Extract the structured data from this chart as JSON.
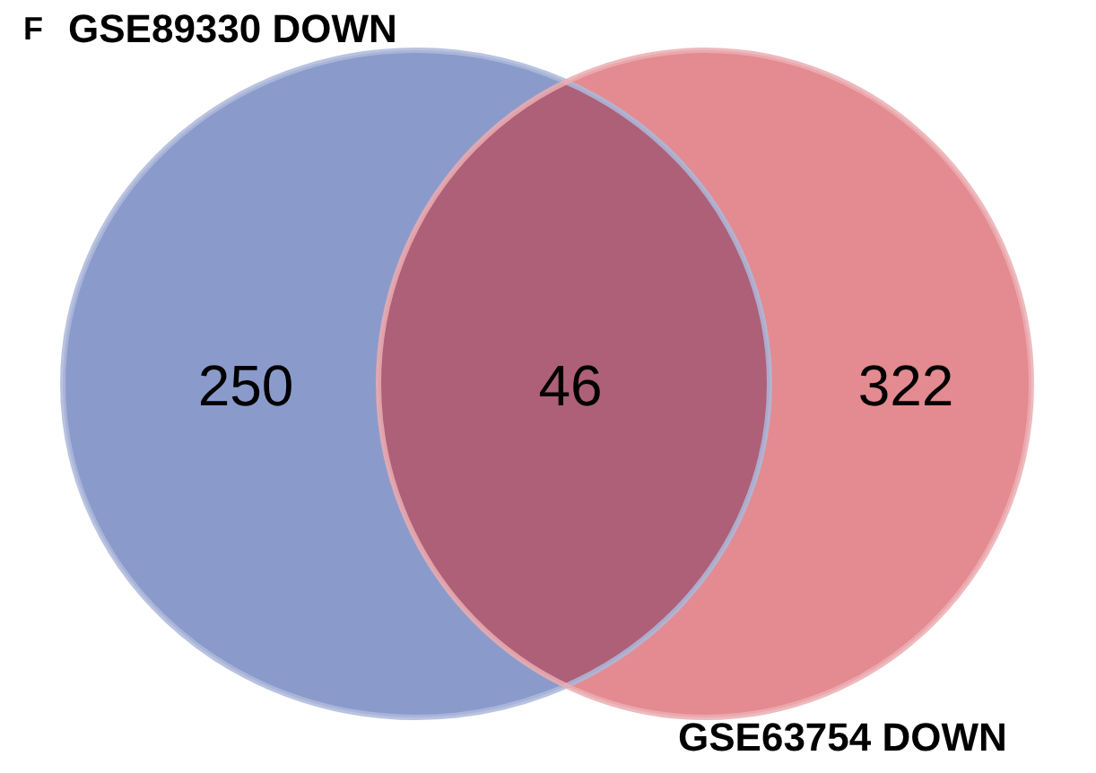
{
  "chart_data": {
    "type": "other",
    "title": "F",
    "categories": [
      "GSE89330 DOWN",
      null,
      "GSE63754 DOWN"
    ],
    "values": [
      250,
      46,
      322
    ],
    "data_labels": true,
    "colors": [
      "#8a9bcb",
      "#ad6078",
      "#e38b90"
    ]
  }
}
